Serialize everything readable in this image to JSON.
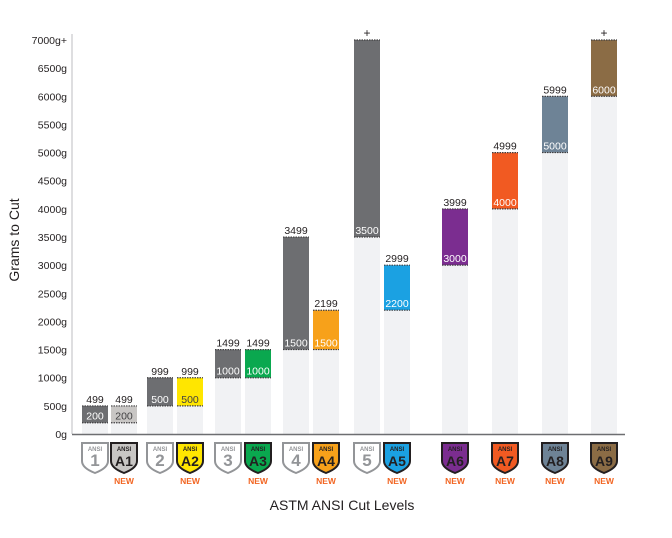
{
  "chart_data": {
    "type": "bar",
    "title": "",
    "xlabel": "ASTM ANSI Cut Levels",
    "ylabel": "Grams to Cut",
    "ylim": [
      0,
      7000
    ],
    "yticks": [
      "0g",
      "500g",
      "1000g",
      "1500g",
      "2000g",
      "2500g",
      "3000g",
      "3500g",
      "4000g",
      "4500g",
      "5000g",
      "5500g",
      "6000g",
      "6500g",
      "7000g+"
    ],
    "badge_top_label": "ANSI",
    "new_label": "NEW",
    "plus_label": "+",
    "categories": [
      {
        "badge": "1",
        "low": 200,
        "high": 499,
        "low_label": "200",
        "high_label": "499",
        "color": "#6d6e71",
        "badge_color": "#ffffff",
        "new": false
      },
      {
        "badge": "A1",
        "low": 200,
        "high": 499,
        "low_label": "200",
        "high_label": "499",
        "color": "#c8c6c4",
        "badge_color": "#c8c6c4",
        "new": true
      },
      {
        "badge": "2",
        "low": 500,
        "high": 999,
        "low_label": "500",
        "high_label": "999",
        "color": "#6d6e71",
        "badge_color": "#ffffff",
        "new": false
      },
      {
        "badge": "A2",
        "low": 500,
        "high": 999,
        "low_label": "500",
        "high_label": "999",
        "color": "#ffe600",
        "badge_color": "#ffe600",
        "new": true
      },
      {
        "badge": "3",
        "low": 1000,
        "high": 1499,
        "low_label": "1000",
        "high_label": "1499",
        "color": "#6d6e71",
        "badge_color": "#ffffff",
        "new": false
      },
      {
        "badge": "A3",
        "low": 1000,
        "high": 1499,
        "low_label": "1000",
        "high_label": "1499",
        "color": "#0aa84f",
        "badge_color": "#0aa84f",
        "new": true
      },
      {
        "badge": "4",
        "low": 1500,
        "high": 3499,
        "low_label": "1500",
        "high_label": "3499",
        "color": "#6d6e71",
        "badge_color": "#ffffff",
        "new": false
      },
      {
        "badge": "A4",
        "low": 1500,
        "high": 2199,
        "low_label": "1500",
        "high_label": "2199",
        "color": "#f7a11a",
        "badge_color": "#f7a11a",
        "new": true
      },
      {
        "badge": "5",
        "low": 3500,
        "high": 7000,
        "low_label": "3500",
        "high_label": "+",
        "color": "#6d6e71",
        "badge_color": "#ffffff",
        "new": false
      },
      {
        "badge": "A5",
        "low": 2200,
        "high": 2999,
        "low_label": "2200",
        "high_label": "2999",
        "color": "#1ba1e2",
        "badge_color": "#1ba1e2",
        "new": true
      },
      {
        "badge": "A6",
        "low": 3000,
        "high": 3999,
        "low_label": "3000",
        "high_label": "3999",
        "color": "#7b2d90",
        "badge_color": "#7b2d90",
        "new": true
      },
      {
        "badge": "A7",
        "low": 4000,
        "high": 4999,
        "low_label": "4000",
        "high_label": "4999",
        "color": "#f15a22",
        "badge_color": "#f15a22",
        "new": true
      },
      {
        "badge": "A8",
        "low": 5000,
        "high": 5999,
        "low_label": "5000",
        "high_label": "5999",
        "color": "#6e8396",
        "badge_color": "#6e8396",
        "new": true
      },
      {
        "badge": "A9",
        "low": 6000,
        "high": 7000,
        "low_label": "6000",
        "high_label": "+",
        "color": "#8b6c45",
        "badge_color": "#8b6c45",
        "new": true
      }
    ],
    "colors": {
      "background_bar": "#f1f2f4",
      "axis": "#6d6e71",
      "new": "#f26522"
    }
  }
}
